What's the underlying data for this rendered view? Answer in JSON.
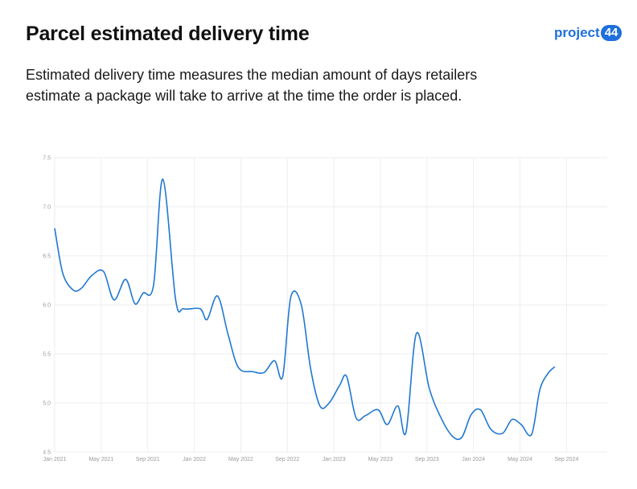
{
  "header": {
    "title": "Parcel estimated delivery time",
    "subtitle": "Estimated delivery time measures the median amount of days retailers estimate a package will take to arrive at the time the order is placed."
  },
  "logo": {
    "text": "project",
    "badge": "44",
    "color": "#1f6fde"
  },
  "chart_data": {
    "type": "line",
    "title": "",
    "xlabel": "",
    "ylabel": "",
    "ylim": [
      4.5,
      7.5
    ],
    "yticks": [
      "4.5",
      "5.0",
      "5.5",
      "6.0",
      "6.5",
      "7.0",
      "7.5"
    ],
    "xlim": [
      0,
      47.5
    ],
    "xticks": [
      {
        "label": "Jan 2021",
        "month": 0
      },
      {
        "label": "May 2021",
        "month": 4
      },
      {
        "label": "Sep 2021",
        "month": 8
      },
      {
        "label": "Jan 2022",
        "month": 12
      },
      {
        "label": "May 2022",
        "month": 16
      },
      {
        "label": "Sep 2022",
        "month": 20
      },
      {
        "label": "Jan 2023",
        "month": 24
      },
      {
        "label": "May 2023",
        "month": 28
      },
      {
        "label": "Sep 2023",
        "month": 32
      },
      {
        "label": "Jan 2024",
        "month": 36
      },
      {
        "label": "May 2024",
        "month": 40
      },
      {
        "label": "Sep 2024",
        "month": 44
      }
    ],
    "grid": true,
    "line_color": "#1f78d1",
    "series": [
      {
        "name": "",
        "points": [
          [
            0,
            6.78
          ],
          [
            0.7,
            6.32
          ],
          [
            1.6,
            6.15
          ],
          [
            2.3,
            6.17
          ],
          [
            3.2,
            6.3
          ],
          [
            4.2,
            6.34
          ],
          [
            5.1,
            6.05
          ],
          [
            6.1,
            6.26
          ],
          [
            6.9,
            6.01
          ],
          [
            7.6,
            6.12
          ],
          [
            8.5,
            6.2
          ],
          [
            9.3,
            7.28
          ],
          [
            10.4,
            6.05
          ],
          [
            11.1,
            5.96
          ],
          [
            12.5,
            5.96
          ],
          [
            13.1,
            5.85
          ],
          [
            14.0,
            6.09
          ],
          [
            14.9,
            5.7
          ],
          [
            15.8,
            5.36
          ],
          [
            17.0,
            5.32
          ],
          [
            18.0,
            5.31
          ],
          [
            18.9,
            5.43
          ],
          [
            19.6,
            5.27
          ],
          [
            20.3,
            6.08
          ],
          [
            21.2,
            6.0
          ],
          [
            22.0,
            5.35
          ],
          [
            22.8,
            4.97
          ],
          [
            23.6,
            5.0
          ],
          [
            24.5,
            5.18
          ],
          [
            25.1,
            5.27
          ],
          [
            25.9,
            4.85
          ],
          [
            26.7,
            4.87
          ],
          [
            27.8,
            4.93
          ],
          [
            28.6,
            4.78
          ],
          [
            29.5,
            4.97
          ],
          [
            30.2,
            4.7
          ],
          [
            31.1,
            5.71
          ],
          [
            32.2,
            5.15
          ],
          [
            33.2,
            4.85
          ],
          [
            34.2,
            4.66
          ],
          [
            35.0,
            4.65
          ],
          [
            35.8,
            4.88
          ],
          [
            36.6,
            4.93
          ],
          [
            37.5,
            4.73
          ],
          [
            38.5,
            4.69
          ],
          [
            39.3,
            4.83
          ],
          [
            40.1,
            4.78
          ],
          [
            41.0,
            4.68
          ],
          [
            41.7,
            5.13
          ],
          [
            42.4,
            5.3
          ],
          [
            43.0,
            5.37
          ]
        ]
      }
    ]
  }
}
